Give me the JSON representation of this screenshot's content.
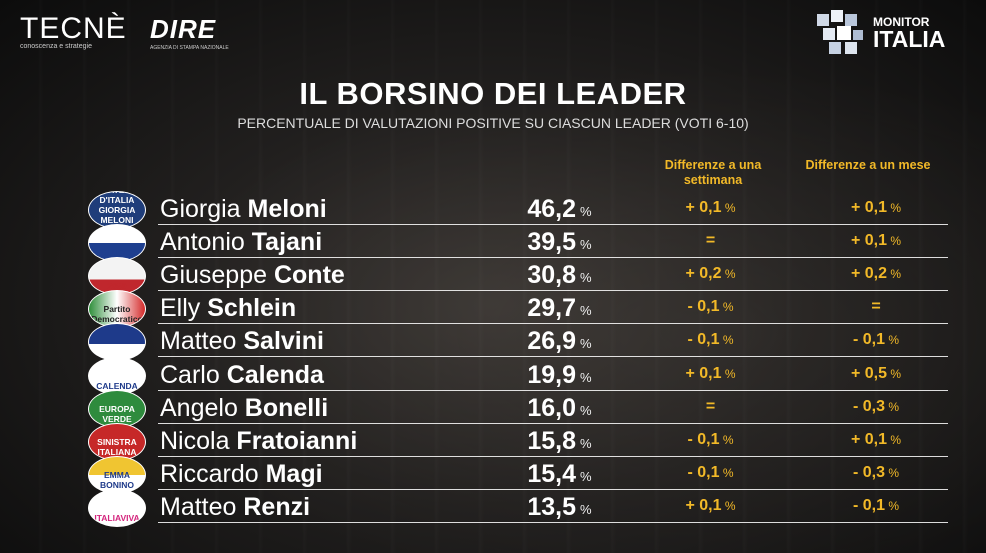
{
  "header": {
    "tecne_brand": "TECNÈ",
    "tecne_tagline": "conoscenza e strategie",
    "dire_brand": "DIRE",
    "dire_tagline": "AGENZIA DI STAMPA NAZIONALE",
    "monitor_line1": "MONITOR",
    "monitor_line2": "ITALIA"
  },
  "colors": {
    "accent": "#f2b928",
    "tecne_red": "#e23a2e"
  },
  "chart_data": {
    "type": "table",
    "title": "IL BORSINO DEI LEADER",
    "subtitle": "PERCENTUALE DI VALUTAZIONI POSITIVE SU CIASCUN LEADER (VOTI 6-10)",
    "columns": [
      "Differenze a una settimana",
      "Differenze a un mese"
    ],
    "unit": "%",
    "rows": [
      {
        "first": "Giorgia",
        "last": "Meloni",
        "party_logo": "FRATELLI D'ITALIA GIORGIA MELONI",
        "value": "46,2",
        "week": "+ 0,1",
        "month": "+ 0,1"
      },
      {
        "first": "Antonio",
        "last": "Tajani",
        "party_logo": "BERLUSCONI",
        "value": "39,5",
        "week": "=",
        "month": "+ 0,1"
      },
      {
        "first": "Giuseppe",
        "last": "Conte",
        "party_logo": "2050",
        "value": "30,8",
        "week": "+ 0,2",
        "month": "+ 0,2"
      },
      {
        "first": "Elly",
        "last": "Schlein",
        "party_logo": "Partito Democratico",
        "value": "29,7",
        "week": "- 0,1",
        "month": "="
      },
      {
        "first": "Matteo",
        "last": "Salvini",
        "party_logo": "SALVINI",
        "value": "26,9",
        "week": "- 0,1",
        "month": "- 0,1"
      },
      {
        "first": "Carlo",
        "last": "Calenda",
        "party_logo": "CALENDA",
        "value": "19,9",
        "week": "+ 0,1",
        "month": "+ 0,5"
      },
      {
        "first": "Angelo",
        "last": "Bonelli",
        "party_logo": "EUROPA VERDE",
        "value": "16,0",
        "week": "=",
        "month": "- 0,3"
      },
      {
        "first": "Nicola",
        "last": "Fratoianni",
        "party_logo": "SINISTRA ITALIANA",
        "value": "15,8",
        "week": "- 0,1",
        "month": "+ 0,1"
      },
      {
        "first": "Riccardo",
        "last": "Magi",
        "party_logo": "EMMA BONINO",
        "value": "15,4",
        "week": "- 0,1",
        "month": "- 0,3"
      },
      {
        "first": "Matteo",
        "last": "Renzi",
        "party_logo": "ITALIAVIVA",
        "value": "13,5",
        "week": "+ 0,1",
        "month": "- 0,1"
      }
    ]
  }
}
